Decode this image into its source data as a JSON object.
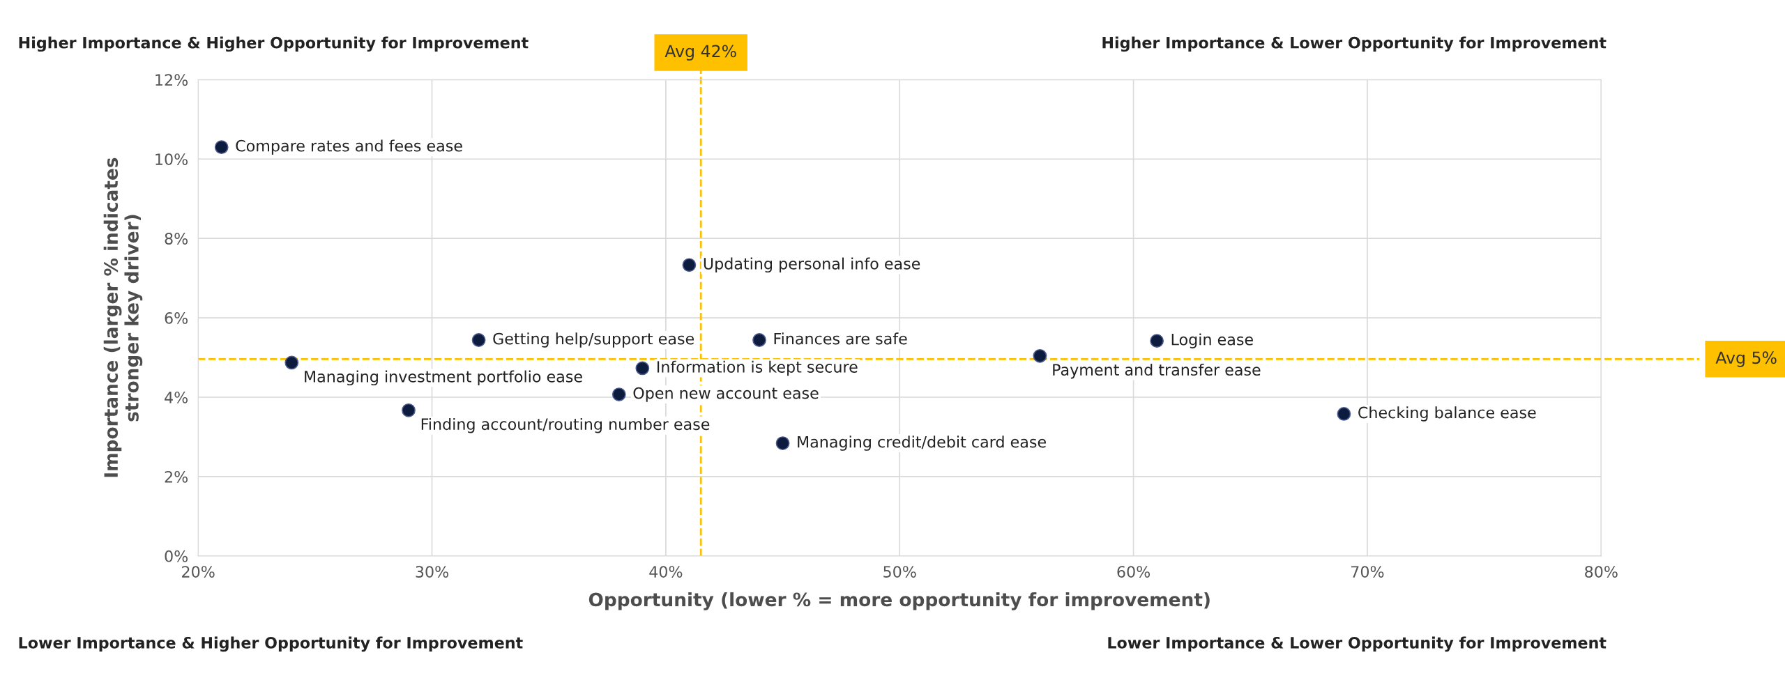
{
  "chart_data": {
    "type": "scatter",
    "xlabel": "Opportunity (lower % = more opportunity for improvement)",
    "ylabel": "Importance (larger % indicates\nstronger key driver)",
    "x": [
      21,
      41,
      32,
      44,
      56,
      61,
      24,
      39,
      38,
      29,
      45,
      69
    ],
    "values": [
      10.3,
      7.33,
      5.44,
      5.44,
      5.04,
      5.42,
      4.87,
      4.73,
      4.07,
      3.67,
      2.84,
      3.58
    ],
    "color": "#0d1b3e",
    "marker": "circle",
    "grid": true,
    "xlim": [
      20,
      80
    ],
    "xticks": [
      {
        "value": 20,
        "label": "20%"
      },
      {
        "value": 30,
        "label": "30%"
      },
      {
        "value": 40,
        "label": "40%"
      },
      {
        "value": 50,
        "label": "50%"
      },
      {
        "value": 60,
        "label": "60%"
      },
      {
        "value": 70,
        "label": "70%"
      },
      {
        "value": 80,
        "label": "80%"
      }
    ],
    "ylim": [
      0,
      12
    ],
    "yticks": [
      {
        "value": 0,
        "label": "0%"
      },
      {
        "value": 2,
        "label": "2%"
      },
      {
        "value": 4,
        "label": "4%"
      },
      {
        "value": 6,
        "label": "6%"
      },
      {
        "value": 8,
        "label": "8%"
      },
      {
        "value": 10,
        "label": "10%"
      },
      {
        "value": 12,
        "label": "12%"
      }
    ],
    "ref_lines": [
      {
        "axis": "x",
        "value": 41.5,
        "label": "Avg 42%",
        "color": "#ffc000",
        "line_style": "dashed"
      },
      {
        "axis": "y",
        "value": 4.96,
        "label": "Avg 5%",
        "color": "#ffc000",
        "line_style": "dashed"
      }
    ],
    "annotations": [
      "Higher Importance & Higher Opportunity for Improvement",
      "Higher Importance & Lower Opportunity for Improvement",
      "Lower Importance & Higher Opportunity for Improvement",
      "Lower Importance & Lower Opportunity for Improvement",
      {
        "text": "Compare rates and fees ease",
        "x": 21,
        "y": 10.3
      },
      {
        "text": "Updating personal info ease",
        "x": 41,
        "y": 7.33
      },
      {
        "text": "Getting help/support ease",
        "x": 32,
        "y": 5.44
      },
      {
        "text": "Finances are safe",
        "x": 44,
        "y": 5.44
      },
      {
        "text": "Payment and transfer ease",
        "x": 56,
        "y": 5.04
      },
      {
        "text": "Login ease",
        "x": 61,
        "y": 5.42
      },
      {
        "text": "Managing investment portfolio ease",
        "x": 24,
        "y": 4.87
      },
      {
        "text": "Information is kept secure",
        "x": 39,
        "y": 4.73
      },
      {
        "text": "Open new account ease",
        "x": 38,
        "y": 4.07
      },
      {
        "text": "Finding account/routing number ease",
        "x": 29,
        "y": 3.67
      },
      {
        "text": "Managing credit/debit card ease",
        "x": 45,
        "y": 2.84
      },
      {
        "text": "Checking balance ease",
        "x": 69,
        "y": 3.58
      }
    ]
  }
}
